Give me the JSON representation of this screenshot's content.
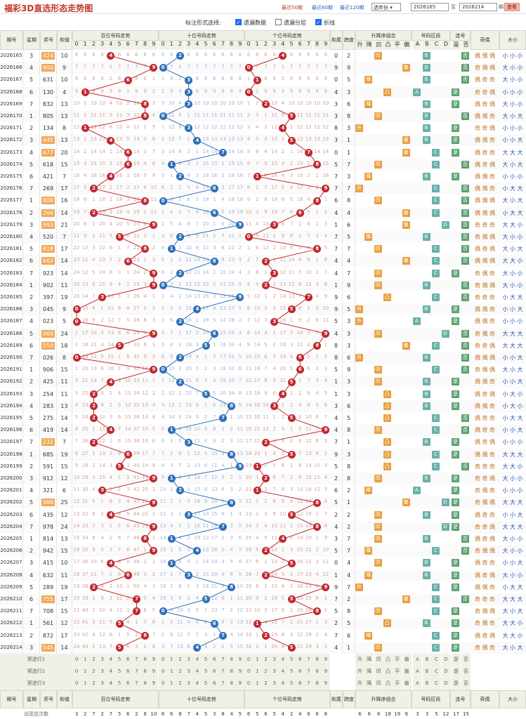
{
  "topbar": {
    "title": "福彩3D直选形态走势图",
    "links": [
      "最近50期",
      "最近80期",
      "最近120期"
    ],
    "select": "选年份",
    "from": "2026165",
    "to_label": "至",
    "to": "2026214",
    "period_label": "期",
    "search": "查看"
  },
  "options": {
    "label": "标注形式选择:",
    "items": [
      {
        "label": "遗漏数据",
        "checked": true
      },
      {
        "label": "遗漏分层",
        "checked": false
      },
      {
        "label": "折线",
        "checked": true
      }
    ]
  },
  "headers": {
    "period": "期号",
    "week": "星期",
    "prize": "奖号",
    "sum": "和值",
    "hundreds": "百位号码走势",
    "tens": "十位号码走势",
    "units": "个位号码走势",
    "sumtail": "和尾",
    "span": "跨度",
    "updown": "升降序组合",
    "zone": "号码区段",
    "consec": "连号",
    "oddeven": "奇偶",
    "bigsmall": "大小"
  },
  "digits": [
    "0",
    "1",
    "2",
    "3",
    "4",
    "5",
    "6",
    "7",
    "8",
    "9"
  ],
  "ud_sub": [
    "升",
    "降",
    "凹",
    "凸",
    "平",
    "偏"
  ],
  "zone_sub": [
    "A",
    "B",
    "C",
    "D"
  ],
  "consec_sub": [
    "是",
    "否"
  ],
  "rows": [
    {
      "p": "2026165",
      "w": "3",
      "n": "424",
      "s": "10",
      "hl": true
    },
    {
      "p": "2026166",
      "w": "4",
      "n": "900",
      "s": "9",
      "hl": true
    },
    {
      "p": "2026167",
      "w": "5",
      "n": "631",
      "s": "10",
      "hl": false
    },
    {
      "p": "2026168",
      "w": "6",
      "n": "130",
      "s": "4",
      "hl": false
    },
    {
      "p": "2026169",
      "w": "7",
      "n": "832",
      "s": "13",
      "hl": false
    },
    {
      "p": "2026170",
      "w": "1",
      "n": "805",
      "s": "13",
      "hl": false
    },
    {
      "p": "2026171",
      "w": "2",
      "n": "134",
      "s": "8",
      "hl": false
    },
    {
      "p": "2026172",
      "w": "3",
      "n": "445",
      "s": "13",
      "hl": true
    },
    {
      "p": "2026173",
      "w": "4",
      "n": "677",
      "s": "20",
      "hl": true
    },
    {
      "p": "2026174",
      "w": "5",
      "n": "618",
      "s": "15",
      "hl": false
    },
    {
      "p": "2026175",
      "w": "6",
      "n": "421",
      "s": "7",
      "hl": false
    },
    {
      "p": "2026176",
      "w": "7",
      "n": "269",
      "s": "17",
      "hl": false
    },
    {
      "p": "2026177",
      "w": "1",
      "n": "808",
      "s": "16",
      "hl": true
    },
    {
      "p": "2026178",
      "w": "2",
      "n": "266",
      "s": "14",
      "hl": true
    },
    {
      "p": "2026179",
      "w": "3",
      "n": "993",
      "s": "21",
      "hl": true
    },
    {
      "p": "2026180",
      "w": "4",
      "n": "520",
      "s": "7",
      "hl": false
    },
    {
      "p": "2026181",
      "w": "5",
      "n": "818",
      "s": "17",
      "hl": true
    },
    {
      "p": "2026182",
      "w": "6",
      "n": "662",
      "s": "14",
      "hl": true
    },
    {
      "p": "2026183",
      "w": "7",
      "n": "923",
      "s": "14",
      "hl": false
    },
    {
      "p": "2026184",
      "w": "1",
      "n": "902",
      "s": "11",
      "hl": false
    },
    {
      "p": "2026185",
      "w": "2",
      "n": "397",
      "s": "19",
      "hl": false
    },
    {
      "p": "2026186",
      "w": "3",
      "n": "045",
      "s": "9",
      "hl": false
    },
    {
      "p": "2026187",
      "w": "4",
      "n": "023",
      "s": "5",
      "hl": false
    },
    {
      "p": "2026188",
      "w": "5",
      "n": "969",
      "s": "24",
      "hl": true
    },
    {
      "p": "2026189",
      "w": "6",
      "n": "558",
      "s": "18",
      "hl": true
    },
    {
      "p": "2026190",
      "w": "7",
      "n": "026",
      "s": "8",
      "hl": false
    },
    {
      "p": "2026191",
      "w": "1",
      "n": "906",
      "s": "15",
      "hl": false
    },
    {
      "p": "2026192",
      "w": "2",
      "n": "425",
      "s": "11",
      "hl": false
    },
    {
      "p": "2026193",
      "w": "3",
      "n": "254",
      "s": "11",
      "hl": false
    },
    {
      "p": "2026194",
      "w": "4",
      "n": "283",
      "s": "13",
      "hl": false
    },
    {
      "p": "2026195",
      "w": "5",
      "n": "275",
      "s": "14",
      "hl": false
    },
    {
      "p": "2026196",
      "w": "6",
      "n": "419",
      "s": "14",
      "hl": false
    },
    {
      "p": "2026197",
      "w": "7",
      "n": "232",
      "s": "7",
      "hl": true
    },
    {
      "p": "2026198",
      "w": "1",
      "n": "685",
      "s": "19",
      "hl": false
    },
    {
      "p": "2026199",
      "w": "2",
      "n": "591",
      "s": "15",
      "hl": false
    },
    {
      "p": "2026200",
      "w": "3",
      "n": "912",
      "s": "12",
      "hl": false
    },
    {
      "p": "2026201",
      "w": "4",
      "n": "321",
      "s": "6",
      "hl": false
    },
    {
      "p": "2026202",
      "w": "5",
      "n": "988",
      "s": "25",
      "hl": true
    },
    {
      "p": "2026203",
      "w": "6",
      "n": "435",
      "s": "12",
      "hl": false
    },
    {
      "p": "2026204",
      "w": "7",
      "n": "978",
      "s": "24",
      "hl": false
    },
    {
      "p": "2026205",
      "w": "1",
      "n": "814",
      "s": "13",
      "hl": false
    },
    {
      "p": "2026206",
      "w": "2",
      "n": "942",
      "s": "15",
      "hl": false
    },
    {
      "p": "2026207",
      "w": "3",
      "n": "415",
      "s": "10",
      "hl": false
    },
    {
      "p": "2026208",
      "w": "4",
      "n": "632",
      "s": "11",
      "hl": false
    },
    {
      "p": "2026209",
      "w": "5",
      "n": "289",
      "s": "19",
      "hl": false
    },
    {
      "p": "2026210",
      "w": "6",
      "n": "755",
      "s": "17",
      "hl": true
    },
    {
      "p": "2026211",
      "w": "7",
      "n": "708",
      "s": "15",
      "hl": false
    },
    {
      "p": "2026212",
      "w": "1",
      "n": "561",
      "s": "12",
      "hl": false
    },
    {
      "p": "2026213",
      "w": "2",
      "n": "872",
      "s": "17",
      "hl": false
    },
    {
      "p": "2026214",
      "w": "3",
      "n": "545",
      "s": "14",
      "hl": true
    }
  ],
  "oe_labels": [
    "奇",
    "偶"
  ],
  "bs_labels": [
    "大",
    "小"
  ],
  "ud_labels": [
    "升",
    "降",
    "凹",
    "凸",
    "平",
    "偏"
  ],
  "yes_no": [
    "是",
    "否"
  ],
  "preselect": [
    "预选行1",
    "预选行2",
    "预选行3"
  ],
  "footer": {
    "label": "出现总次数",
    "counts": [
      "3",
      "2",
      "7",
      "2",
      "7",
      "5",
      "6",
      "2",
      "6",
      "10",
      "6",
      "6",
      "8",
      "7",
      "4",
      "5",
      "3",
      "8",
      "4",
      "5",
      "6",
      "5",
      "6",
      "5",
      "4",
      "2",
      "4",
      "6",
      "6",
      "8",
      "6",
      "6",
      "8",
      "18",
      "19",
      "6",
      "3",
      "3",
      "5",
      "12",
      "17",
      "15",
      "26",
      "24"
    ]
  }
}
